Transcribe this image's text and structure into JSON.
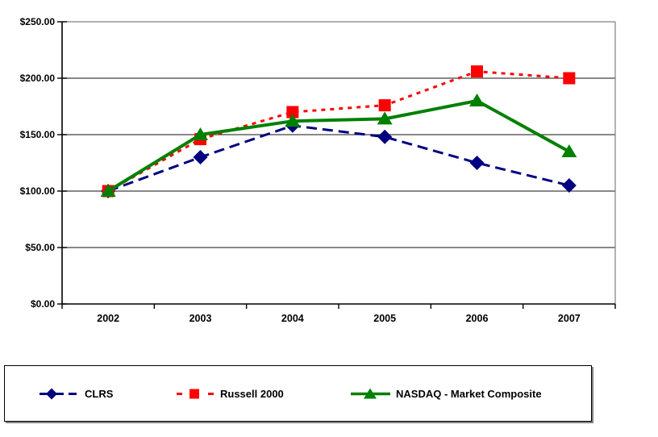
{
  "chart_data": {
    "type": "line",
    "title": "",
    "xlabel": "",
    "ylabel": "",
    "categories": [
      "2002",
      "2003",
      "2004",
      "2005",
      "2006",
      "2007"
    ],
    "series": [
      {
        "name": "CLRS",
        "color": "#000080",
        "marker": "diamond",
        "line_style": "dashed",
        "values": [
          100,
          130,
          158,
          148,
          125,
          105
        ]
      },
      {
        "name": "Russell 2000",
        "color": "#FF0000",
        "marker": "square",
        "line_style": "dotted",
        "values": [
          100,
          146,
          170,
          176,
          206,
          200
        ]
      },
      {
        "name": "NASDAQ - Market Composite",
        "color": "#008000",
        "marker": "triangle",
        "line_style": "solid",
        "values": [
          100,
          150,
          162,
          164,
          180,
          135
        ]
      }
    ],
    "ylim": [
      0,
      250
    ],
    "y_ticks": [
      0,
      50,
      100,
      150,
      200,
      250
    ],
    "y_tick_labels": [
      "$0.00",
      "$50.00",
      "$100.00",
      "$150.00",
      "$200.00",
      "$250.00"
    ],
    "grid": true,
    "legend_position": "bottom",
    "axis_color": "#000000",
    "gridline_color": "#404040",
    "plot_border_color": "#808080"
  }
}
